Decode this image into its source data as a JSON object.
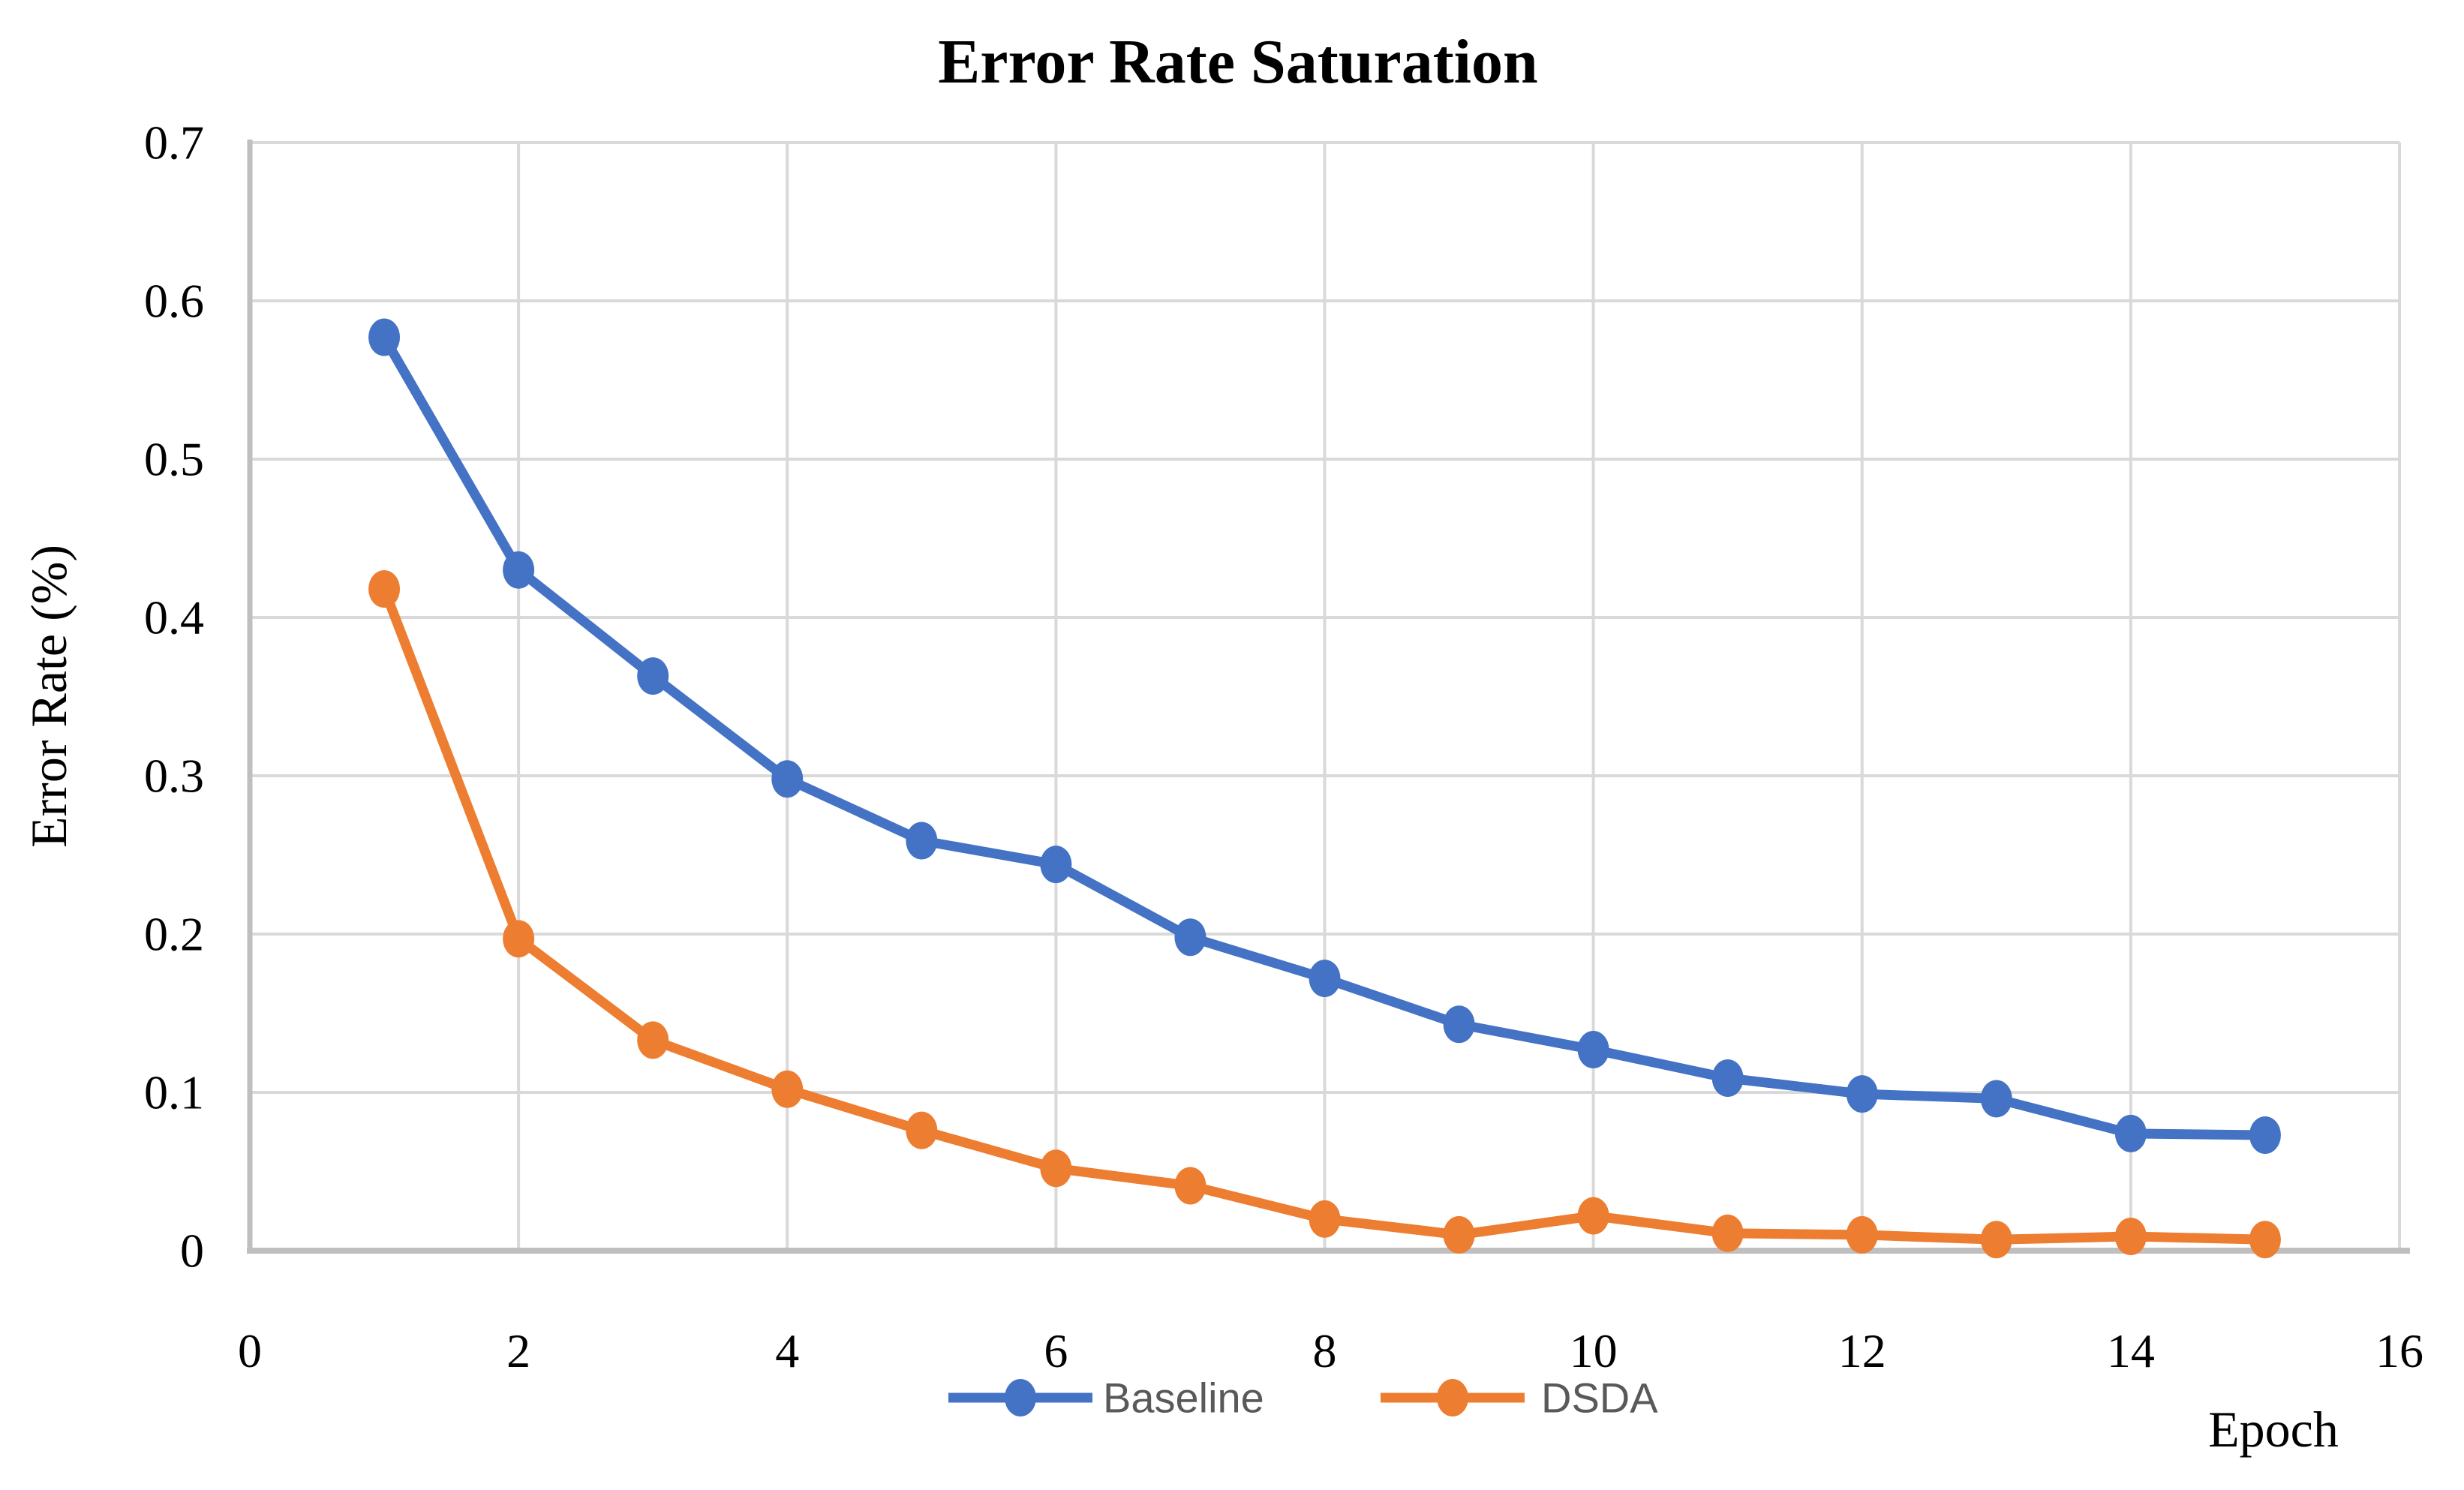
{
  "chart_data": {
    "type": "line",
    "title": "Error Rate Saturation",
    "xlabel": "Epoch",
    "ylabel": "Error Rate (%)",
    "x": [
      1,
      2,
      3,
      4,
      5,
      6,
      7,
      8,
      9,
      10,
      11,
      12,
      13,
      14,
      15
    ],
    "series": [
      {
        "name": "Baseline",
        "color": "#4472C4",
        "values": [
          0.577,
          0.43,
          0.363,
          0.298,
          0.259,
          0.244,
          0.198,
          0.172,
          0.143,
          0.127,
          0.109,
          0.099,
          0.096,
          0.074,
          0.073
        ]
      },
      {
        "name": "DSDA",
        "color": "#ED7D31",
        "values": [
          0.418,
          0.197,
          0.133,
          0.102,
          0.076,
          0.052,
          0.041,
          0.02,
          0.01,
          0.022,
          0.011,
          0.01,
          0.007,
          0.009,
          0.007
        ]
      }
    ],
    "xlim": [
      0,
      16
    ],
    "ylim": [
      0,
      0.7
    ],
    "x_ticks": [
      0,
      2,
      4,
      6,
      8,
      10,
      12,
      14,
      16
    ],
    "y_ticks": [
      0,
      0.1,
      0.2,
      0.3,
      0.4,
      0.5,
      0.6,
      0.7
    ],
    "grid": true,
    "legend_position": "bottom-center"
  },
  "colors": {
    "baseline_series": "#4472C4",
    "dsda_series": "#ED7D31",
    "gridline": "#D9D9D9",
    "axis_line": "#BFBFBF",
    "legend_text": "#595959",
    "label_text": "#000000"
  }
}
